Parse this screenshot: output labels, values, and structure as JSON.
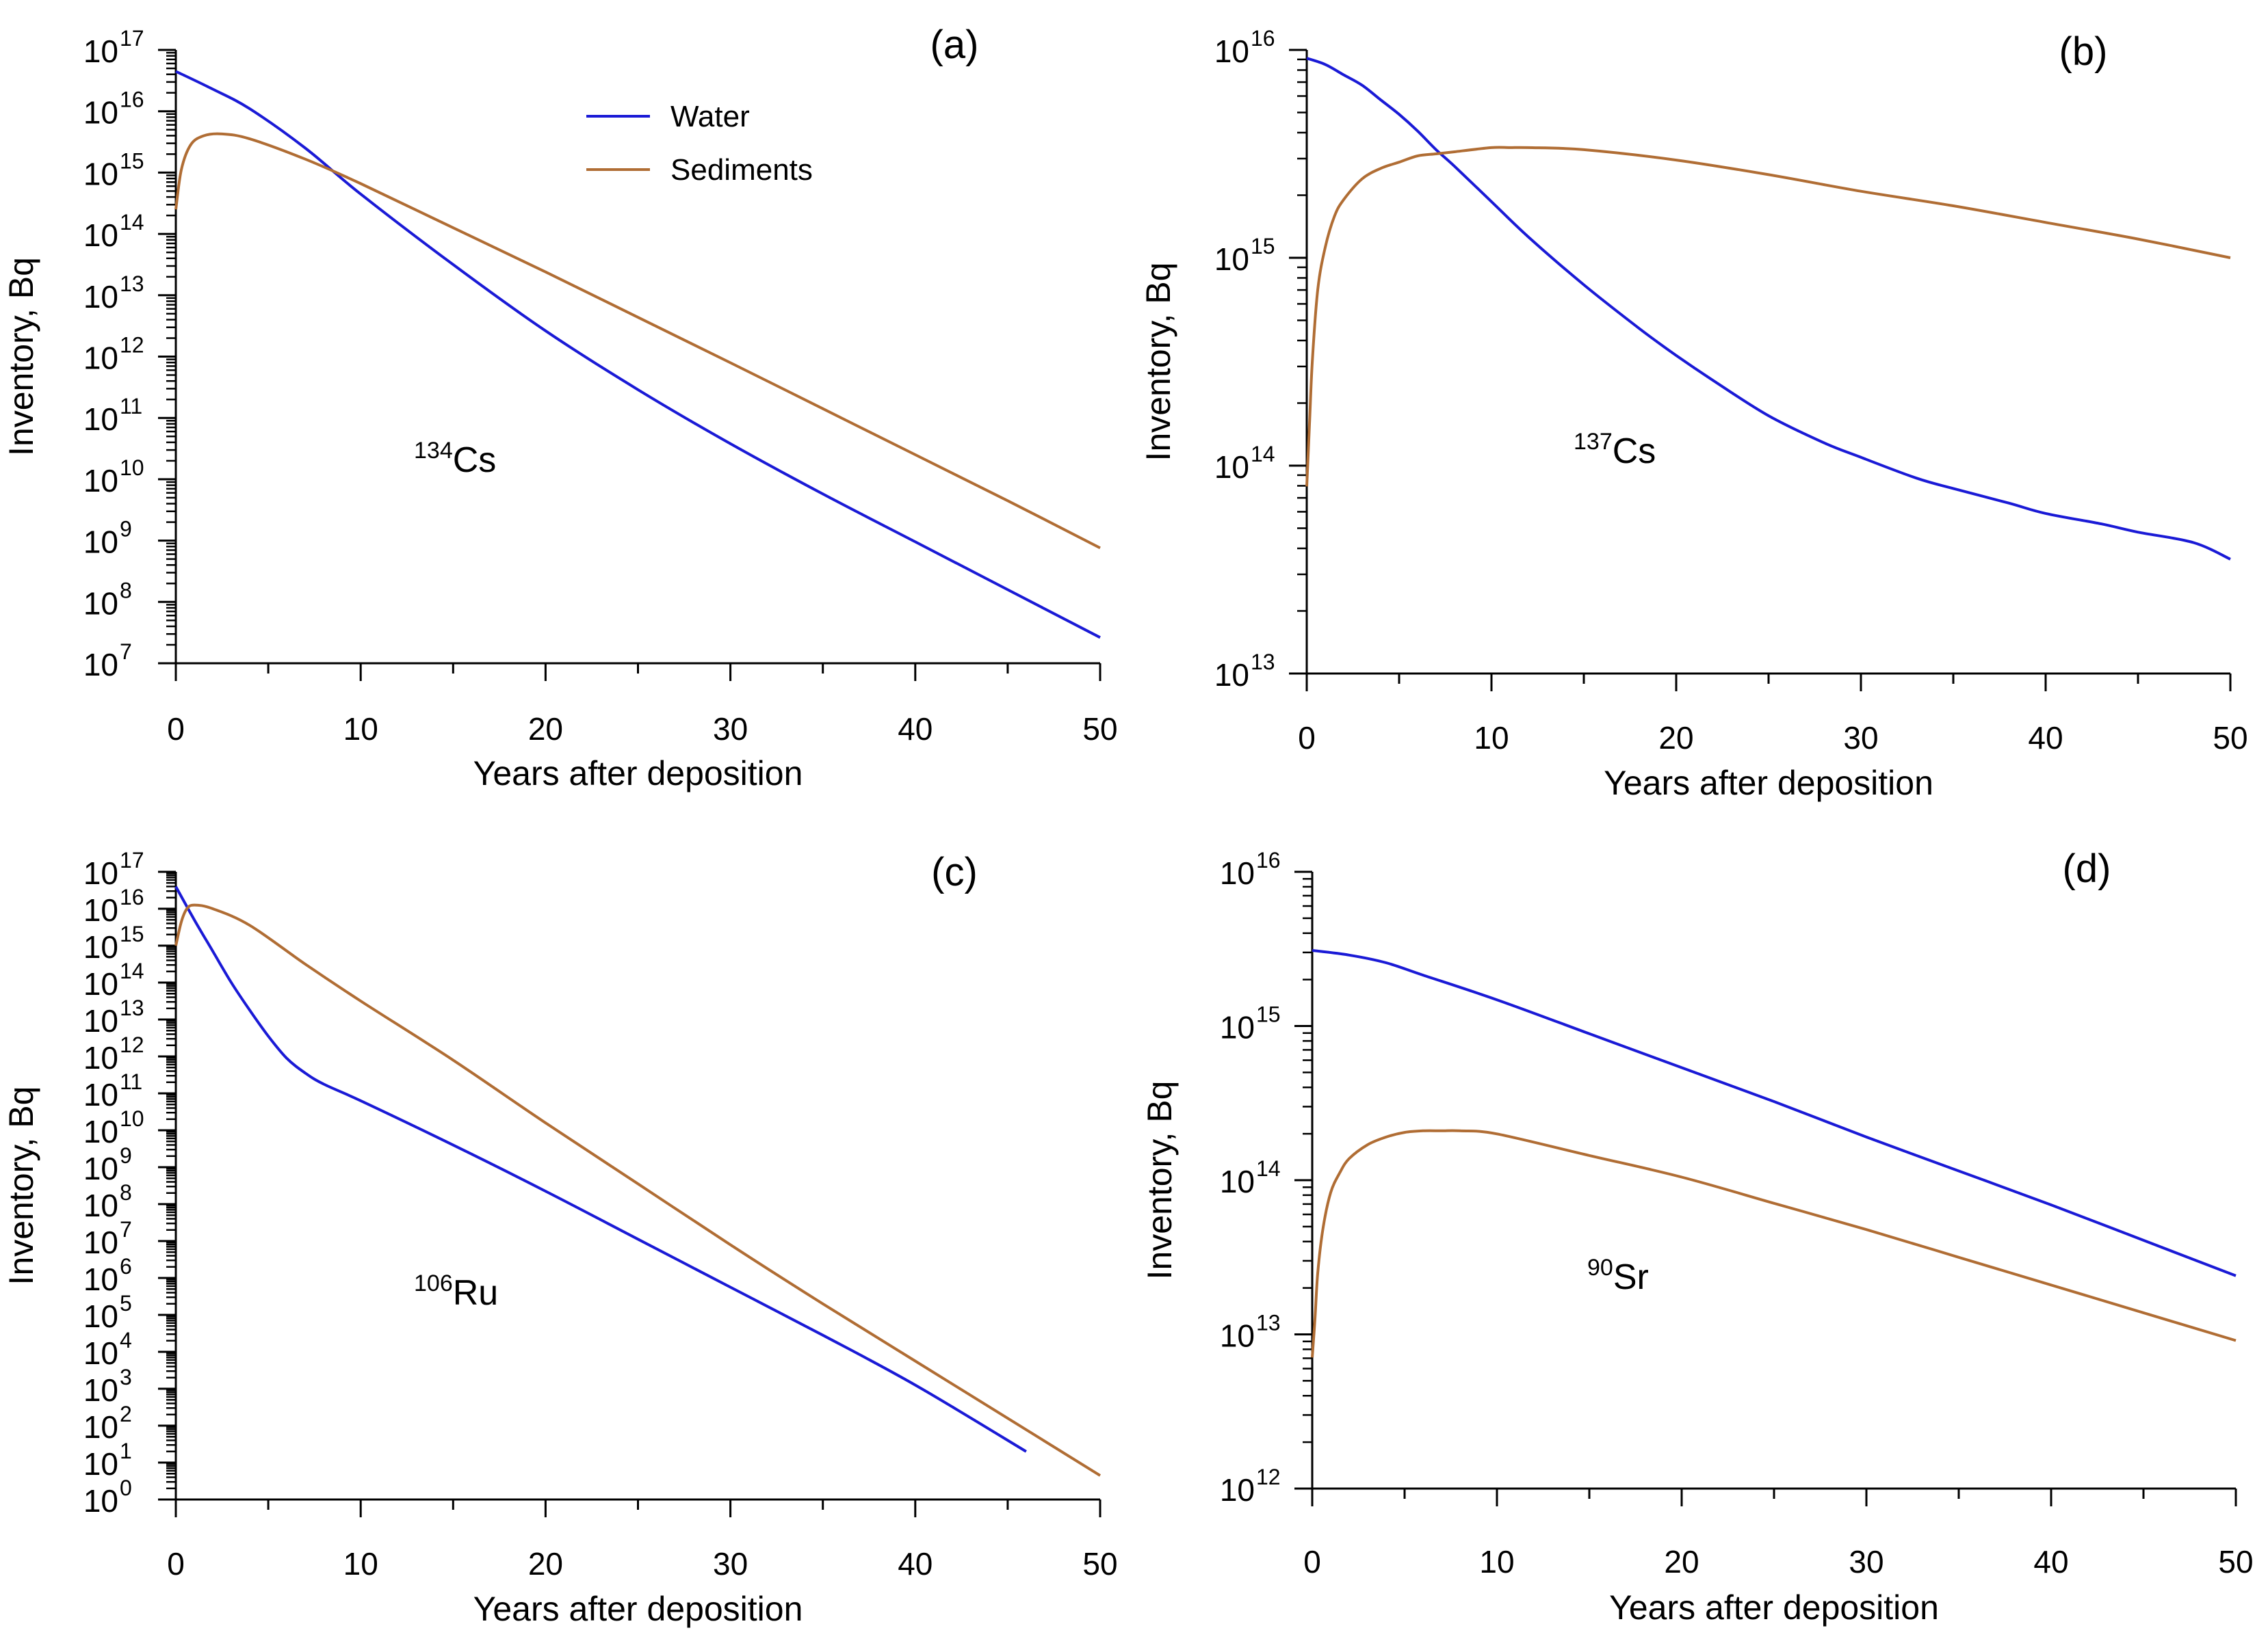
{
  "legend": {
    "items": [
      {
        "label": "Water",
        "color": "#1a1ad6"
      },
      {
        "label": "Sediments",
        "color": "#b06d34"
      }
    ]
  },
  "chart_data": [
    {
      "type": "line",
      "panel_label": "(a)",
      "nuclide": {
        "isotope": "134",
        "element": "Cs"
      },
      "xlabel": "Years after deposition",
      "ylabel": "Inventory, Bq",
      "xlim": [
        0,
        50
      ],
      "xticks": [
        0,
        10,
        20,
        30,
        40,
        50
      ],
      "yscale": "log",
      "ylim_exp": [
        7,
        17
      ],
      "yticks_exp": [
        7,
        8,
        9,
        10,
        11,
        12,
        13,
        14,
        15,
        16,
        17
      ],
      "grid": false,
      "series": [
        {
          "name": "Water",
          "color": "#1a1ad6",
          "x": [
            0,
            2,
            4,
            7,
            10,
            15,
            20,
            25,
            30,
            35,
            40,
            45,
            50
          ],
          "log10_y": [
            16.65,
            16.36,
            16.04,
            15.4,
            14.65,
            13.5,
            12.42,
            11.46,
            10.58,
            9.76,
            8.98,
            8.2,
            7.42
          ]
        },
        {
          "name": "Sediments",
          "color": "#b06d34",
          "x": [
            0,
            0.3,
            0.8,
            1.5,
            2.5,
            4,
            7,
            10,
            15,
            20,
            25,
            30,
            35,
            40,
            45,
            50
          ],
          "log10_y": [
            14.4,
            15.05,
            15.45,
            15.6,
            15.63,
            15.55,
            15.22,
            14.82,
            14.1,
            13.38,
            12.64,
            11.9,
            11.15,
            10.4,
            9.65,
            8.88
          ]
        }
      ]
    },
    {
      "type": "line",
      "panel_label": "(b)",
      "nuclide": {
        "isotope": "137",
        "element": "Cs"
      },
      "xlabel": "Years after deposition",
      "ylabel": "Inventory, Bq",
      "xlim": [
        0,
        50
      ],
      "xticks": [
        0,
        10,
        20,
        30,
        40,
        50
      ],
      "yscale": "log",
      "ylim_exp": [
        13,
        16
      ],
      "yticks_exp": [
        13,
        14,
        15,
        16
      ],
      "grid": false,
      "series": [
        {
          "name": "Water",
          "color": "#1a1ad6",
          "x": [
            0,
            1,
            2,
            3,
            4,
            5,
            6,
            7,
            8,
            10,
            12,
            15,
            18,
            20,
            22,
            25,
            28,
            30,
            33,
            35,
            38,
            40,
            43,
            45,
            48,
            50
          ],
          "log10_y": [
            15.96,
            15.93,
            15.88,
            15.83,
            15.76,
            15.69,
            15.61,
            15.52,
            15.44,
            15.27,
            15.1,
            14.87,
            14.66,
            14.53,
            14.41,
            14.24,
            14.11,
            14.04,
            13.94,
            13.89,
            13.82,
            13.77,
            13.72,
            13.68,
            13.63,
            13.55
          ]
        },
        {
          "name": "Sediments",
          "color": "#b06d34",
          "x": [
            0,
            0.15,
            0.3,
            0.6,
            1,
            1.5,
            2,
            3,
            4,
            5,
            6,
            7,
            8,
            10,
            11,
            12,
            15,
            20,
            25,
            30,
            35,
            40,
            45,
            50
          ],
          "log10_y": [
            13.9,
            14.2,
            14.5,
            14.85,
            15.05,
            15.2,
            15.28,
            15.38,
            15.43,
            15.46,
            15.49,
            15.5,
            15.51,
            15.53,
            15.53,
            15.53,
            15.52,
            15.47,
            15.4,
            15.32,
            15.25,
            15.17,
            15.09,
            15.0
          ]
        }
      ]
    },
    {
      "type": "line",
      "panel_label": "(c)",
      "nuclide": {
        "isotope": "106",
        "element": "Ru"
      },
      "xlabel": "Years after deposition",
      "ylabel": "Inventory, Bq",
      "xlim": [
        0,
        50
      ],
      "xticks": [
        0,
        10,
        20,
        30,
        40,
        50
      ],
      "yscale": "log",
      "ylim_exp": [
        0,
        17
      ],
      "yticks_exp": [
        0,
        1,
        2,
        3,
        4,
        5,
        6,
        7,
        8,
        9,
        10,
        11,
        12,
        13,
        14,
        15,
        16,
        17
      ],
      "grid": false,
      "series": [
        {
          "name": "Water",
          "color": "#1a1ad6",
          "x": [
            0,
            1,
            2,
            3,
            4,
            5,
            6,
            7,
            8,
            10,
            15,
            20,
            25,
            30,
            35,
            40,
            46
          ],
          "log10_y": [
            16.6,
            15.7,
            14.85,
            14.0,
            13.25,
            12.55,
            11.95,
            11.55,
            11.25,
            10.8,
            9.6,
            8.35,
            7.05,
            5.75,
            4.45,
            3.1,
            1.3
          ]
        },
        {
          "name": "Sediments",
          "color": "#b06d34",
          "x": [
            0,
            0.3,
            0.6,
            1,
            2,
            4,
            7,
            10,
            15,
            20,
            25,
            30,
            35,
            40,
            45,
            50
          ],
          "log10_y": [
            15.0,
            15.65,
            16.0,
            16.1,
            16.0,
            15.55,
            14.5,
            13.5,
            11.9,
            10.2,
            8.55,
            6.9,
            5.3,
            3.75,
            2.2,
            0.65
          ]
        }
      ]
    },
    {
      "type": "line",
      "panel_label": "(d)",
      "nuclide": {
        "isotope": "90",
        "element": "Sr"
      },
      "xlabel": "Years after deposition",
      "ylabel": "Inventory, Bq",
      "xlim": [
        0,
        50
      ],
      "xticks": [
        0,
        10,
        20,
        30,
        40,
        50
      ],
      "yscale": "log",
      "ylim_exp": [
        12,
        16
      ],
      "yticks_exp": [
        12,
        13,
        14,
        15,
        16
      ],
      "grid": false,
      "series": [
        {
          "name": "Water",
          "color": "#1a1ad6",
          "x": [
            0,
            2,
            4,
            6,
            10,
            15,
            20,
            25,
            30,
            35,
            40,
            45,
            50
          ],
          "log10_y": [
            15.49,
            15.46,
            15.41,
            15.33,
            15.17,
            14.95,
            14.73,
            14.51,
            14.28,
            14.06,
            13.84,
            13.61,
            13.38
          ]
        },
        {
          "name": "Sediments",
          "color": "#b06d34",
          "x": [
            0,
            0.15,
            0.3,
            0.6,
            1,
            1.5,
            2,
            3,
            4,
            5,
            6,
            7,
            8,
            10,
            15,
            20,
            25,
            30,
            35,
            40,
            45,
            50
          ],
          "log10_y": [
            12.85,
            13.1,
            13.4,
            13.7,
            13.92,
            14.05,
            14.14,
            14.23,
            14.28,
            14.31,
            14.32,
            14.32,
            14.32,
            14.3,
            14.16,
            14.02,
            13.85,
            13.68,
            13.5,
            13.32,
            13.14,
            12.96
          ]
        }
      ]
    }
  ]
}
